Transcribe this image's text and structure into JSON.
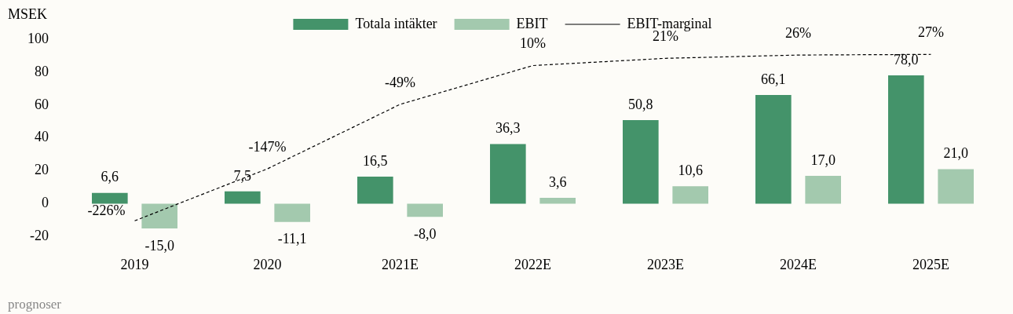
{
  "chart_data": {
    "type": "bar",
    "ylabel": "MSEK",
    "categories": [
      "2019",
      "2020",
      "2021E",
      "2022E",
      "2023E",
      "2024E",
      "2025E"
    ],
    "series": [
      {
        "name": "Totala intäkter",
        "color": "#44936a",
        "values": [
          6.6,
          7.5,
          16.5,
          36.3,
          50.8,
          66.1,
          78.0
        ],
        "value_labels": [
          "6,6",
          "7,5",
          "16,5",
          "36,3",
          "50,8",
          "66,1",
          "78,0"
        ]
      },
      {
        "name": "EBIT",
        "color": "#a3c9ae",
        "values": [
          -15.0,
          -11.1,
          -8.0,
          3.6,
          10.6,
          17.0,
          21.0
        ],
        "value_labels": [
          "-15,0",
          "-11,1",
          "-8,0",
          "3,6",
          "10,6",
          "17,0",
          "21,0"
        ]
      },
      {
        "name": "EBIT-marginal",
        "type": "line",
        "axis": "y2",
        "color": "#000000",
        "line_style": "dashed",
        "values": [
          -226,
          -147,
          -49,
          10,
          21,
          26,
          27
        ],
        "value_labels": [
          "-226%",
          "-147%",
          "-49%",
          "10%",
          "21%",
          "26%",
          "27%"
        ]
      }
    ],
    "ylim": [
      -20,
      100
    ],
    "yticks": [
      -20,
      0,
      20,
      40,
      60,
      80,
      100
    ],
    "grid": false,
    "legend": "top",
    "marker": "none",
    "annotations": [
      "prognoser"
    ]
  }
}
